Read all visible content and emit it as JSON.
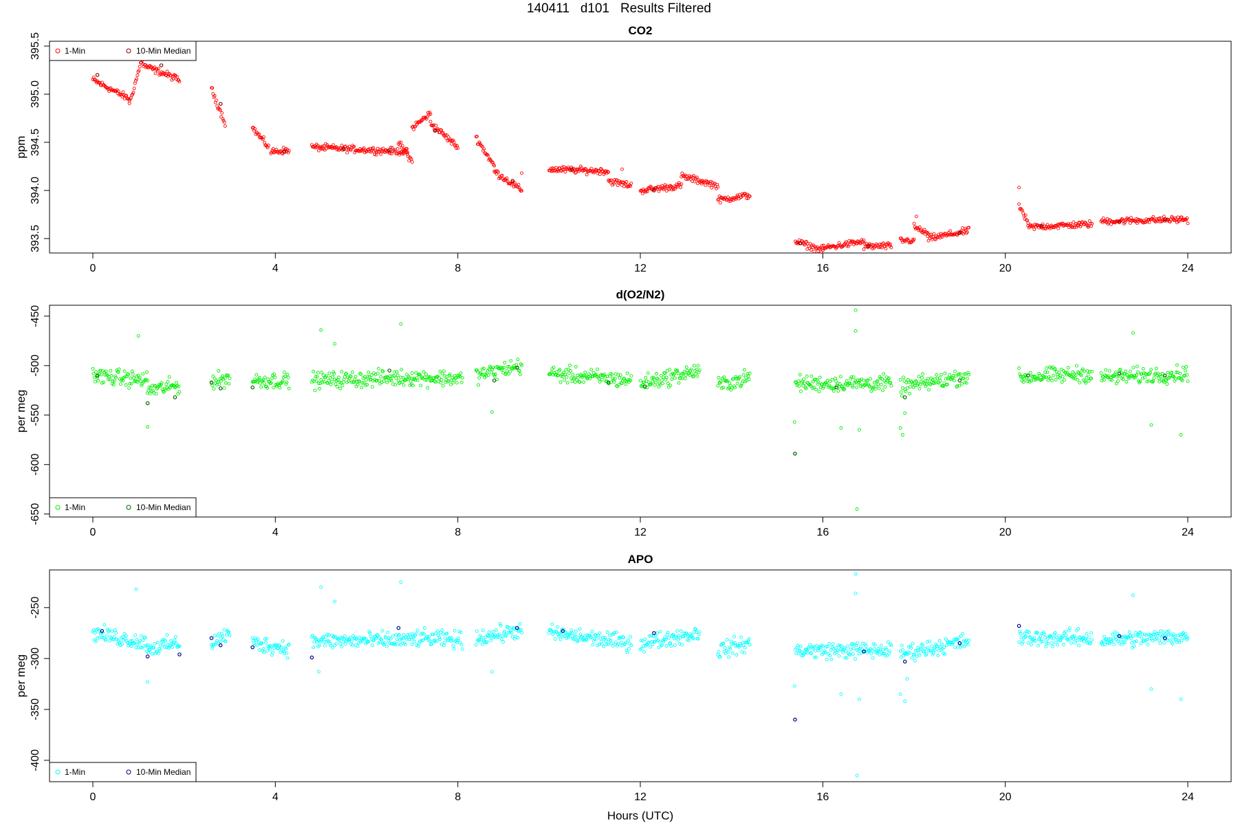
{
  "page": {
    "title": "140411   d101   Results Filtered"
  },
  "x_axis": {
    "label": "Hours (UTC)",
    "range": [
      0,
      24
    ],
    "ticks": [
      0,
      4,
      8,
      12,
      16,
      20,
      24
    ]
  },
  "legend": {
    "placement": "bottom-left (CO2: top-left)",
    "items": [
      "1-Min",
      "10-Min Median"
    ]
  },
  "colors": {
    "co2_1min": "#ff0000",
    "co2_median": "#8b0000",
    "o2_1min": "#00ee00",
    "o2_median": "#006400",
    "apo_1min": "#00ffff",
    "apo_median": "#00008b"
  },
  "chart_data": [
    {
      "type": "scatter",
      "title": "CO2",
      "ylabel": "ppm",
      "xlabel": "",
      "xlim": [
        0,
        24
      ],
      "ylim": [
        393.35,
        395.55
      ],
      "y_ticks": [
        393.5,
        394.0,
        394.5,
        395.0,
        395.5
      ],
      "y_tick_labels": [
        "393.5",
        "394.0",
        "394.5",
        "395.0",
        "395.5"
      ],
      "legend_position": "top-left",
      "segments": [
        [
          0.0,
          0.8,
          395.15,
          394.95
        ],
        [
          0.8,
          1.1,
          394.9,
          395.4
        ],
        [
          1.1,
          1.9,
          395.3,
          395.15
        ],
        [
          2.6,
          2.9,
          395.05,
          394.7
        ],
        [
          3.5,
          3.85,
          394.65,
          394.45
        ],
        [
          3.9,
          4.3,
          394.4,
          394.42
        ],
        [
          4.8,
          6.9,
          394.45,
          394.4
        ],
        [
          6.7,
          7.0,
          394.5,
          394.3
        ],
        [
          7.0,
          7.4,
          394.65,
          394.8
        ],
        [
          7.4,
          8.0,
          394.7,
          394.45
        ],
        [
          8.4,
          8.8,
          394.55,
          394.25
        ],
        [
          8.8,
          9.4,
          394.2,
          394.0
        ],
        [
          10.0,
          11.3,
          394.22,
          394.2
        ],
        [
          11.3,
          11.8,
          394.1,
          394.05
        ],
        [
          12.0,
          12.9,
          394.0,
          394.05
        ],
        [
          12.9,
          13.7,
          394.15,
          394.05
        ],
        [
          13.7,
          14.4,
          393.9,
          393.95
        ],
        [
          15.4,
          16.0,
          393.47,
          393.38
        ],
        [
          16.0,
          16.9,
          393.4,
          393.47
        ],
        [
          16.9,
          17.5,
          393.42,
          393.42
        ],
        [
          17.7,
          18.0,
          393.48,
          393.48
        ],
        [
          18.0,
          18.3,
          393.62,
          393.55
        ],
        [
          18.3,
          19.2,
          393.5,
          393.58
        ],
        [
          20.3,
          20.5,
          393.85,
          393.65
        ],
        [
          20.5,
          21.9,
          393.62,
          393.65
        ],
        [
          22.1,
          24.0,
          393.68,
          393.7
        ]
      ],
      "outliers": [
        [
          20.3,
          394.03
        ],
        [
          18.05,
          393.73
        ],
        [
          11.6,
          394.22
        ],
        [
          9.4,
          394.18
        ]
      ],
      "median_points": [
        [
          0.1,
          395.2
        ],
        [
          1.5,
          395.3
        ],
        [
          2.8,
          394.9
        ],
        [
          4.2,
          394.4
        ],
        [
          5.5,
          394.43
        ],
        [
          6.5,
          394.42
        ],
        [
          7.5,
          394.62
        ],
        [
          9.2,
          394.1
        ],
        [
          10.5,
          394.22
        ],
        [
          12.3,
          394.0
        ],
        [
          15.5,
          393.45
        ],
        [
          17.0,
          393.42
        ],
        [
          19.0,
          393.56
        ],
        [
          20.8,
          393.63
        ],
        [
          22.5,
          393.67
        ],
        [
          23.5,
          393.7
        ]
      ],
      "noise": 0.05
    },
    {
      "type": "scatter",
      "title": "d(O2/N2)",
      "ylabel": "per meg",
      "xlabel": "",
      "xlim": [
        0,
        24
      ],
      "ylim": [
        -653,
        -439
      ],
      "y_ticks": [
        -650,
        -600,
        -550,
        -500,
        -450
      ],
      "y_tick_labels": [
        "-650",
        "-600",
        "-550",
        "-500",
        "-450"
      ],
      "legend_position": "bottom-left",
      "segments": [
        [
          0.0,
          1.2,
          -510,
          -515
        ],
        [
          1.2,
          1.9,
          -525,
          -520
        ],
        [
          2.6,
          3.0,
          -517,
          -512
        ],
        [
          3.5,
          4.3,
          -515,
          -515
        ],
        [
          4.8,
          7.0,
          -515,
          -512
        ],
        [
          7.0,
          8.1,
          -512,
          -513
        ],
        [
          8.4,
          9.4,
          -510,
          -500
        ],
        [
          10.0,
          11.8,
          -508,
          -515
        ],
        [
          12.0,
          13.3,
          -518,
          -505
        ],
        [
          13.7,
          14.4,
          -520,
          -512
        ],
        [
          15.4,
          17.5,
          -518,
          -518
        ],
        [
          17.7,
          19.2,
          -522,
          -510
        ],
        [
          20.3,
          21.9,
          -512,
          -508
        ],
        [
          22.1,
          24.0,
          -512,
          -508
        ]
      ],
      "outliers": [
        [
          15.38,
          -557
        ],
        [
          15.39,
          -589
        ],
        [
          16.72,
          -444
        ],
        [
          16.75,
          -645
        ],
        [
          16.72,
          -465
        ],
        [
          16.4,
          -563
        ],
        [
          16.8,
          -565
        ],
        [
          17.7,
          -563
        ],
        [
          17.75,
          -570
        ],
        [
          17.8,
          -548
        ],
        [
          6.75,
          -458
        ],
        [
          5.0,
          -464
        ],
        [
          5.3,
          -478
        ],
        [
          22.8,
          -467
        ],
        [
          23.85,
          -570
        ],
        [
          23.2,
          -560
        ],
        [
          1.2,
          -562
        ],
        [
          8.75,
          -547
        ],
        [
          1.0,
          -470
        ]
      ],
      "median_points": [
        [
          0.1,
          -510
        ],
        [
          1.2,
          -538
        ],
        [
          1.8,
          -532
        ],
        [
          2.6,
          -517
        ],
        [
          2.8,
          -523
        ],
        [
          3.5,
          -522
        ],
        [
          6.5,
          -505
        ],
        [
          8.8,
          -515
        ],
        [
          9.3,
          -502
        ],
        [
          11.3,
          -517
        ],
        [
          12.1,
          -521
        ],
        [
          15.39,
          -589
        ],
        [
          16.3,
          -522
        ],
        [
          17.8,
          -532
        ],
        [
          19.0,
          -515
        ],
        [
          20.5,
          -510
        ],
        [
          22.5,
          -508
        ],
        [
          23.5,
          -510
        ]
      ],
      "noise": 12
    },
    {
      "type": "scatter",
      "title": "APO",
      "ylabel": "per meg",
      "xlabel": "Hours (UTC)",
      "xlim": [
        0,
        24
      ],
      "ylim": [
        -421,
        -213
      ],
      "y_ticks": [
        -400,
        -350,
        -300,
        -250
      ],
      "y_tick_labels": [
        "-400",
        "-350",
        "-300",
        "-250"
      ],
      "legend_position": "bottom-left",
      "segments": [
        [
          0.0,
          1.2,
          -275,
          -285
        ],
        [
          1.2,
          1.9,
          -290,
          -285
        ],
        [
          2.6,
          3.0,
          -285,
          -275
        ],
        [
          3.5,
          4.3,
          -285,
          -290
        ],
        [
          4.8,
          7.0,
          -283,
          -282
        ],
        [
          7.0,
          8.1,
          -280,
          -282
        ],
        [
          8.4,
          9.4,
          -280,
          -272
        ],
        [
          10.0,
          11.8,
          -275,
          -285
        ],
        [
          12.0,
          13.3,
          -285,
          -275
        ],
        [
          13.7,
          14.4,
          -292,
          -285
        ],
        [
          15.4,
          17.5,
          -292,
          -292
        ],
        [
          17.7,
          19.2,
          -295,
          -283
        ],
        [
          20.3,
          21.9,
          -280,
          -280
        ],
        [
          22.1,
          24.0,
          -282,
          -278
        ]
      ],
      "outliers": [
        [
          15.38,
          -327
        ],
        [
          15.39,
          -360
        ],
        [
          16.72,
          -217
        ],
        [
          16.75,
          -415
        ],
        [
          16.72,
          -236
        ],
        [
          16.4,
          -335
        ],
        [
          16.8,
          -340
        ],
        [
          17.7,
          -335
        ],
        [
          17.8,
          -342
        ],
        [
          17.85,
          -320
        ],
        [
          5.0,
          -230
        ],
        [
          6.75,
          -225
        ],
        [
          5.3,
          -244
        ],
        [
          22.8,
          -238
        ],
        [
          23.85,
          -340
        ],
        [
          23.2,
          -330
        ],
        [
          1.2,
          -323
        ],
        [
          8.75,
          -313
        ],
        [
          0.95,
          -232
        ],
        [
          4.95,
          -313
        ]
      ],
      "median_points": [
        [
          0.2,
          -273
        ],
        [
          1.2,
          -298
        ],
        [
          1.9,
          -296
        ],
        [
          2.6,
          -280
        ],
        [
          2.8,
          -287
        ],
        [
          3.5,
          -289
        ],
        [
          4.8,
          -299
        ],
        [
          6.7,
          -270
        ],
        [
          9.3,
          -270
        ],
        [
          10.3,
          -273
        ],
        [
          12.3,
          -275
        ],
        [
          15.39,
          -360
        ],
        [
          16.9,
          -293
        ],
        [
          17.8,
          -303
        ],
        [
          19.0,
          -285
        ],
        [
          20.3,
          -268
        ],
        [
          22.5,
          -278
        ],
        [
          23.5,
          -280
        ]
      ],
      "noise": 12
    }
  ]
}
